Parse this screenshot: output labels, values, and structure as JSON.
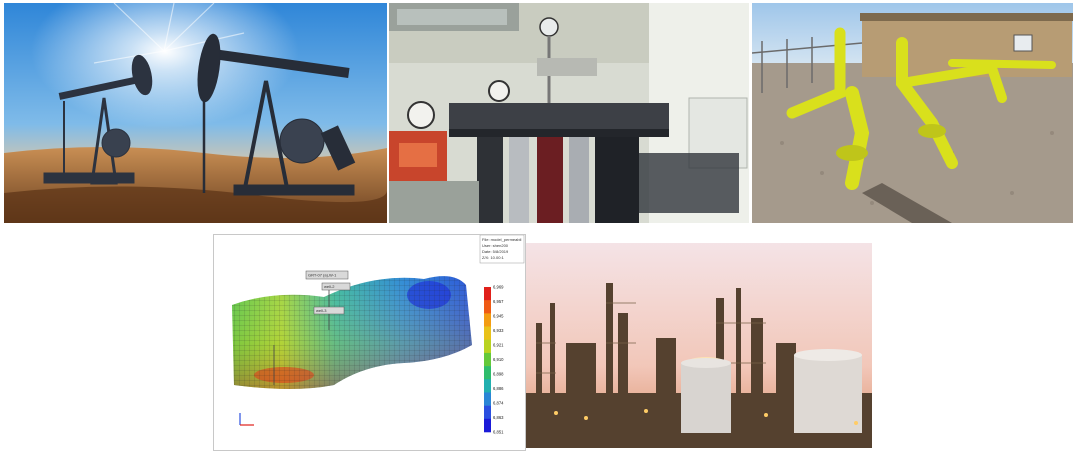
{
  "tiles": [
    {
      "name": "oil-pumpjacks-photo"
    },
    {
      "name": "laboratory-apparatus-photo"
    },
    {
      "name": "gas-pipeline-station-photo"
    },
    {
      "name": "reservoir-simulation-figure"
    },
    {
      "name": "refinery-photo"
    }
  ],
  "simulation": {
    "info_lines": [
      "File: model_permeabil",
      "User: shen200",
      "Date: 5/8/2019",
      "Z/X: 10.00:1"
    ],
    "colorbar_ticks": [
      "6,969",
      "6,957",
      "6,945",
      "6,933",
      "6,921",
      "6,910",
      "6,898",
      "6,886",
      "6,874",
      "6,863",
      "6,851"
    ],
    "colorbar_colors": [
      "#e0201a",
      "#ef5a14",
      "#f39c12",
      "#e9c21a",
      "#b9d321",
      "#64c93a",
      "#2fbd6c",
      "#22b0b0",
      "#2a86d6",
      "#2a4fe0",
      "#1a1ad8"
    ],
    "well_labels": [
      "GRT-07 (a),W-1",
      "well-2",
      "well-3"
    ]
  }
}
